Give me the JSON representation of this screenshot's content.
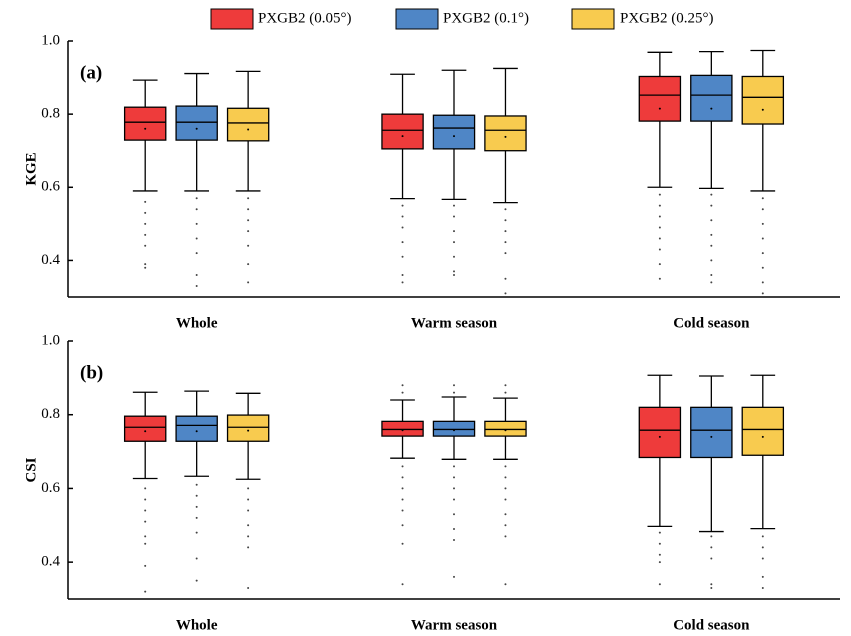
{
  "chart_data": [
    {
      "type": "box",
      "annotation": "(a)",
      "y_label": "KGE",
      "categories": [
        "Whole",
        "Warm season",
        "Cold season"
      ],
      "ylim": [
        0.3,
        1.0
      ],
      "yticks": [
        0.4,
        0.6,
        0.8,
        {
          "value": 1.0,
          "label": "1.0"
        }
      ],
      "series": [
        {
          "name": "PXGB2 (0.05°)",
          "color": "#ee3b3b",
          "boxes": [
            {
              "low": 0.59,
              "q1": 0.729,
              "median": 0.778,
              "q3": 0.819,
              "high": 0.893,
              "mean": 0.76,
              "outliers": [
                0.56,
                0.53,
                0.5,
                0.47,
                0.44,
                0.39,
                0.38
              ]
            },
            {
              "low": 0.569,
              "q1": 0.705,
              "median": 0.756,
              "q3": 0.8,
              "high": 0.909,
              "mean": 0.74,
              "outliers": [
                0.55,
                0.52,
                0.49,
                0.45,
                0.41,
                0.36,
                0.34
              ]
            },
            {
              "low": 0.6,
              "q1": 0.781,
              "median": 0.852,
              "q3": 0.903,
              "high": 0.969,
              "mean": 0.815,
              "outliers": [
                0.58,
                0.55,
                0.52,
                0.49,
                0.46,
                0.43,
                0.39,
                0.35
              ]
            }
          ]
        },
        {
          "name": "PXGB2 (0.1°)",
          "color": "#4f86c6",
          "boxes": [
            {
              "low": 0.59,
              "q1": 0.729,
              "median": 0.778,
              "q3": 0.822,
              "high": 0.911,
              "mean": 0.76,
              "outliers": [
                0.57,
                0.54,
                0.5,
                0.46,
                0.42,
                0.36,
                0.33
              ]
            },
            {
              "low": 0.567,
              "q1": 0.705,
              "median": 0.762,
              "q3": 0.797,
              "high": 0.92,
              "mean": 0.74,
              "outliers": [
                0.55,
                0.52,
                0.48,
                0.45,
                0.41,
                0.37,
                0.36
              ]
            },
            {
              "low": 0.597,
              "q1": 0.781,
              "median": 0.852,
              "q3": 0.906,
              "high": 0.971,
              "mean": 0.815,
              "outliers": [
                0.58,
                0.55,
                0.51,
                0.47,
                0.44,
                0.4,
                0.36,
                0.34
              ]
            }
          ]
        },
        {
          "name": "PXGB2 (0.25°)",
          "color": "#f8cb4f",
          "boxes": [
            {
              "low": 0.59,
              "q1": 0.727,
              "median": 0.776,
              "q3": 0.816,
              "high": 0.917,
              "mean": 0.758,
              "outliers": [
                0.57,
                0.54,
                0.51,
                0.48,
                0.44,
                0.39,
                0.34
              ]
            },
            {
              "low": 0.558,
              "q1": 0.7,
              "median": 0.756,
              "q3": 0.795,
              "high": 0.925,
              "mean": 0.738,
              "outliers": [
                0.54,
                0.51,
                0.48,
                0.45,
                0.42,
                0.35,
                0.31
              ]
            },
            {
              "low": 0.59,
              "q1": 0.773,
              "median": 0.846,
              "q3": 0.903,
              "high": 0.974,
              "mean": 0.812,
              "outliers": [
                0.57,
                0.54,
                0.5,
                0.46,
                0.42,
                0.38,
                0.34,
                0.31
              ]
            }
          ]
        }
      ]
    },
    {
      "type": "box",
      "annotation": "(b)",
      "y_label": "CSI",
      "categories": [
        "Whole",
        "Warm season",
        "Cold season"
      ],
      "ylim": [
        0.3,
        1.0
      ],
      "yticks": [
        0.4,
        0.6,
        0.8,
        {
          "value": 1.0,
          "label": "1.0"
        }
      ],
      "series": [
        {
          "color": "#ee3b3b",
          "boxes": [
            {
              "low": 0.627,
              "q1": 0.728,
              "median": 0.766,
              "q3": 0.796,
              "high": 0.861,
              "mean": 0.755,
              "outliers": [
                0.6,
                0.57,
                0.54,
                0.51,
                0.47,
                0.45,
                0.39,
                0.32
              ]
            },
            {
              "low": 0.682,
              "q1": 0.742,
              "median": 0.76,
              "q3": 0.782,
              "high": 0.84,
              "mean": 0.758,
              "outliers": [
                0.88,
                0.86,
                0.66,
                0.63,
                0.6,
                0.57,
                0.54,
                0.5,
                0.45,
                0.34
              ]
            },
            {
              "low": 0.497,
              "q1": 0.684,
              "median": 0.758,
              "q3": 0.82,
              "high": 0.907,
              "mean": 0.74,
              "outliers": [
                0.48,
                0.45,
                0.42,
                0.4,
                0.34
              ]
            }
          ]
        },
        {
          "color": "#4f86c6",
          "boxes": [
            {
              "low": 0.633,
              "q1": 0.728,
              "median": 0.771,
              "q3": 0.796,
              "high": 0.864,
              "mean": 0.755,
              "outliers": [
                0.61,
                0.58,
                0.55,
                0.52,
                0.48,
                0.41,
                0.35
              ]
            },
            {
              "low": 0.679,
              "q1": 0.742,
              "median": 0.76,
              "q3": 0.782,
              "high": 0.848,
              "mean": 0.758,
              "outliers": [
                0.88,
                0.86,
                0.66,
                0.63,
                0.6,
                0.57,
                0.53,
                0.49,
                0.46,
                0.36
              ]
            },
            {
              "low": 0.483,
              "q1": 0.684,
              "median": 0.758,
              "q3": 0.82,
              "high": 0.905,
              "mean": 0.74,
              "outliers": [
                0.47,
                0.44,
                0.41,
                0.34,
                0.33
              ]
            }
          ]
        },
        {
          "color": "#f8cb4f",
          "boxes": [
            {
              "low": 0.625,
              "q1": 0.728,
              "median": 0.766,
              "q3": 0.799,
              "high": 0.858,
              "mean": 0.757,
              "outliers": [
                0.6,
                0.57,
                0.54,
                0.5,
                0.47,
                0.44,
                0.33
              ]
            },
            {
              "low": 0.679,
              "q1": 0.742,
              "median": 0.76,
              "q3": 0.782,
              "high": 0.845,
              "mean": 0.758,
              "outliers": [
                0.88,
                0.86,
                0.66,
                0.63,
                0.6,
                0.57,
                0.53,
                0.5,
                0.47,
                0.34
              ]
            },
            {
              "low": 0.491,
              "q1": 0.69,
              "median": 0.76,
              "q3": 0.82,
              "high": 0.907,
              "mean": 0.74,
              "outliers": [
                0.47,
                0.44,
                0.41,
                0.36,
                0.33
              ]
            }
          ]
        }
      ]
    }
  ]
}
